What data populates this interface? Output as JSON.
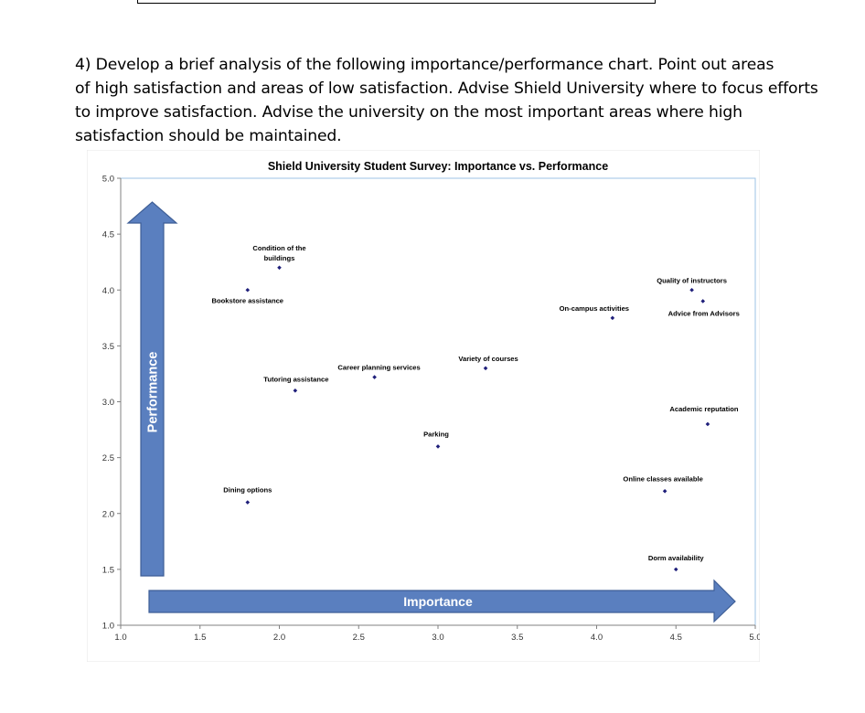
{
  "question": {
    "lines": [
      "4) Develop a brief analysis of the following importance/performance chart. Point out areas",
      "of high satisfaction and areas of low satisfaction. Advise Shield University where to focus efforts",
      "to improve satisfaction. Advise the university on the most important areas where high",
      "satisfaction should be maintained."
    ]
  },
  "chart_data": {
    "type": "scatter",
    "title": "Shield University Student Survey: Importance vs. Performance",
    "xlabel": "Importance",
    "ylabel": "Performance",
    "xlim": [
      1.0,
      5.0
    ],
    "ylim": [
      1.0,
      5.0
    ],
    "x_ticks": [
      "1.0",
      "1.5",
      "2.0",
      "2.5",
      "3.0",
      "3.5",
      "4.0",
      "4.5",
      "5.0"
    ],
    "y_ticks": [
      "1.0",
      "1.5",
      "2.0",
      "2.5",
      "3.0",
      "3.5",
      "4.0",
      "4.5",
      "5.0"
    ],
    "grid": false,
    "legend": "none",
    "marker_color": "#1F1F7A",
    "arrow_color": "#5A7FBF",
    "plot_border_color": "#9DC3E6",
    "points": [
      {
        "label": "Condition of the buildings",
        "x": 2.0,
        "y": 4.2
      },
      {
        "label": "Bookstore assistance",
        "x": 1.8,
        "y": 4.0
      },
      {
        "label": "Quality of instructors",
        "x": 4.6,
        "y": 4.0
      },
      {
        "label": "Advice from Advisors",
        "x": 4.67,
        "y": 3.9
      },
      {
        "label": "On-campus activities",
        "x": 4.1,
        "y": 3.75
      },
      {
        "label": "Variety of courses",
        "x": 3.3,
        "y": 3.3
      },
      {
        "label": "Career planning services",
        "x": 2.6,
        "y": 3.22
      },
      {
        "label": "Tutoring assistance",
        "x": 2.1,
        "y": 3.1
      },
      {
        "label": "Academic reputation",
        "x": 4.7,
        "y": 2.8
      },
      {
        "label": "Parking",
        "x": 3.0,
        "y": 2.6
      },
      {
        "label": "Online classes available",
        "x": 4.43,
        "y": 2.2
      },
      {
        "label": "Dining options",
        "x": 1.8,
        "y": 2.1
      },
      {
        "label": "Dorm availability",
        "x": 4.5,
        "y": 1.5
      }
    ]
  }
}
